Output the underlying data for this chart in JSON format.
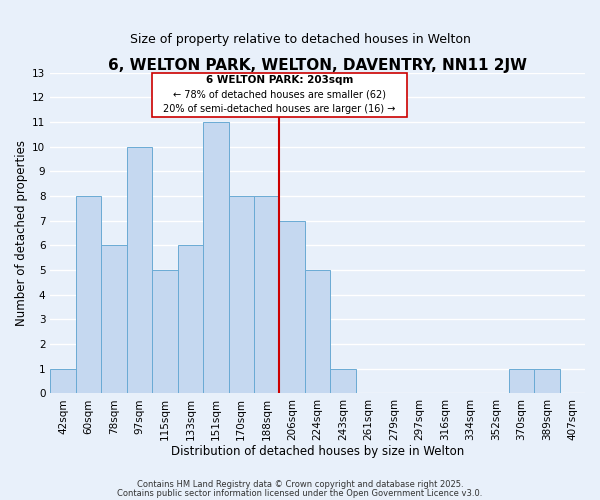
{
  "title": "6, WELTON PARK, WELTON, DAVENTRY, NN11 2JW",
  "subtitle": "Size of property relative to detached houses in Welton",
  "xlabel": "Distribution of detached houses by size in Welton",
  "ylabel": "Number of detached properties",
  "bar_labels": [
    "42sqm",
    "60sqm",
    "78sqm",
    "97sqm",
    "115sqm",
    "133sqm",
    "151sqm",
    "170sqm",
    "188sqm",
    "206sqm",
    "224sqm",
    "243sqm",
    "261sqm",
    "279sqm",
    "297sqm",
    "316sqm",
    "334sqm",
    "352sqm",
    "370sqm",
    "389sqm",
    "407sqm"
  ],
  "bar_heights": [
    1,
    8,
    6,
    10,
    5,
    6,
    11,
    8,
    8,
    7,
    5,
    1,
    0,
    0,
    0,
    0,
    0,
    0,
    1,
    1,
    0
  ],
  "bar_color": "#c5d8f0",
  "bar_edge_color": "#6aaad4",
  "vline_x_idx": 9,
  "vline_color": "#cc0000",
  "ylim": [
    0,
    13
  ],
  "yticks": [
    0,
    1,
    2,
    3,
    4,
    5,
    6,
    7,
    8,
    9,
    10,
    11,
    12,
    13
  ],
  "annotation_title": "6 WELTON PARK: 203sqm",
  "annotation_line2": "← 78% of detached houses are smaller (62)",
  "annotation_line3": "20% of semi-detached houses are larger (16) →",
  "footer_line1": "Contains HM Land Registry data © Crown copyright and database right 2025.",
  "footer_line2": "Contains public sector information licensed under the Open Government Licence v3.0.",
  "background_color": "#e8f0fa",
  "grid_color": "#ffffff",
  "title_fontsize": 11,
  "subtitle_fontsize": 9,
  "axis_label_fontsize": 8.5,
  "tick_fontsize": 7.5,
  "footer_fontsize": 6
}
